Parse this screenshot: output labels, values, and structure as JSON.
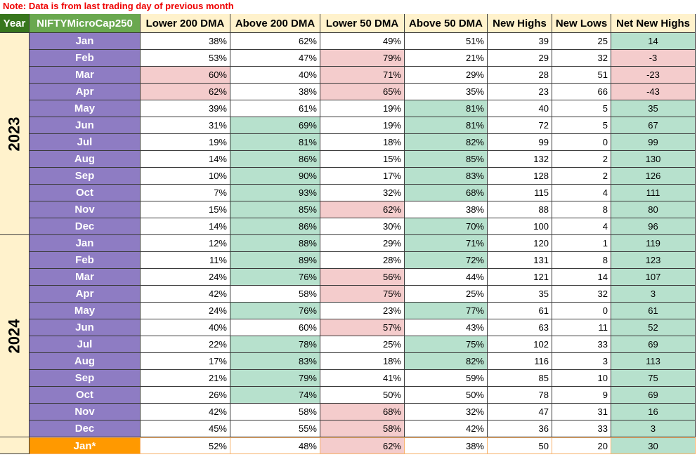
{
  "note": "Note: Data is from last trading day of previous month",
  "header": [
    "Year",
    "NIFTYMicroCap250",
    "Lower 200 DMA",
    "Above 200 DMA",
    "Lower 50 DMA",
    "Above 50 DMA",
    "New Highs",
    "New Lows",
    "Net New Highs"
  ],
  "month_fill": "#8e7cc3",
  "groups": [
    {
      "year": "2023",
      "rows": [
        {
          "month": "Jan",
          "cells": [
            "38%",
            "62%",
            "49%",
            "51%",
            "39",
            "25",
            "14"
          ],
          "fills": [
            null,
            null,
            null,
            null,
            null,
            null,
            "#b7e1cd"
          ]
        },
        {
          "month": "Feb",
          "cells": [
            "53%",
            "47%",
            "79%",
            "21%",
            "29",
            "32",
            "-3"
          ],
          "fills": [
            null,
            null,
            "#f4cccc",
            null,
            null,
            null,
            "#f4cccc"
          ]
        },
        {
          "month": "Mar",
          "cells": [
            "60%",
            "40%",
            "71%",
            "29%",
            "28",
            "51",
            "-23"
          ],
          "fills": [
            "#f4cccc",
            null,
            "#f4cccc",
            null,
            null,
            null,
            "#f4cccc"
          ]
        },
        {
          "month": "Apr",
          "cells": [
            "62%",
            "38%",
            "65%",
            "35%",
            "23",
            "66",
            "-43"
          ],
          "fills": [
            "#f4cccc",
            null,
            "#f4cccc",
            null,
            null,
            null,
            "#f4cccc"
          ]
        },
        {
          "month": "May",
          "cells": [
            "39%",
            "61%",
            "19%",
            "81%",
            "40",
            "5",
            "35"
          ],
          "fills": [
            null,
            null,
            null,
            "#b7e1cd",
            null,
            null,
            "#b7e1cd"
          ]
        },
        {
          "month": "Jun",
          "cells": [
            "31%",
            "69%",
            "19%",
            "81%",
            "72",
            "5",
            "67"
          ],
          "fills": [
            null,
            "#b7e1cd",
            null,
            "#b7e1cd",
            null,
            null,
            "#b7e1cd"
          ]
        },
        {
          "month": "Jul",
          "cells": [
            "19%",
            "81%",
            "18%",
            "82%",
            "99",
            "0",
            "99"
          ],
          "fills": [
            null,
            "#b7e1cd",
            null,
            "#b7e1cd",
            null,
            null,
            "#b7e1cd"
          ]
        },
        {
          "month": "Aug",
          "cells": [
            "14%",
            "86%",
            "15%",
            "85%",
            "132",
            "2",
            "130"
          ],
          "fills": [
            null,
            "#b7e1cd",
            null,
            "#b7e1cd",
            null,
            null,
            "#b7e1cd"
          ]
        },
        {
          "month": "Sep",
          "cells": [
            "10%",
            "90%",
            "17%",
            "83%",
            "128",
            "2",
            "126"
          ],
          "fills": [
            null,
            "#b7e1cd",
            null,
            "#b7e1cd",
            null,
            null,
            "#b7e1cd"
          ]
        },
        {
          "month": "Oct",
          "cells": [
            "7%",
            "93%",
            "32%",
            "68%",
            "115",
            "4",
            "111"
          ],
          "fills": [
            null,
            "#b7e1cd",
            null,
            "#b7e1cd",
            null,
            null,
            "#b7e1cd"
          ]
        },
        {
          "month": "Nov",
          "cells": [
            "15%",
            "85%",
            "62%",
            "38%",
            "88",
            "8",
            "80"
          ],
          "fills": [
            null,
            "#b7e1cd",
            "#f4cccc",
            null,
            null,
            null,
            "#b7e1cd"
          ]
        },
        {
          "month": "Dec",
          "cells": [
            "14%",
            "86%",
            "30%",
            "70%",
            "100",
            "4",
            "96"
          ],
          "fills": [
            null,
            "#b7e1cd",
            null,
            "#b7e1cd",
            null,
            null,
            "#b7e1cd"
          ]
        }
      ]
    },
    {
      "year": "2024",
      "rows": [
        {
          "month": "Jan",
          "cells": [
            "12%",
            "88%",
            "29%",
            "71%",
            "120",
            "1",
            "119"
          ],
          "fills": [
            null,
            "#b7e1cd",
            null,
            "#b7e1cd",
            null,
            null,
            "#b7e1cd"
          ]
        },
        {
          "month": "Feb",
          "cells": [
            "11%",
            "89%",
            "28%",
            "72%",
            "131",
            "8",
            "123"
          ],
          "fills": [
            null,
            "#b7e1cd",
            null,
            "#b7e1cd",
            null,
            null,
            "#b7e1cd"
          ]
        },
        {
          "month": "Mar",
          "cells": [
            "24%",
            "76%",
            "56%",
            "44%",
            "121",
            "14",
            "107"
          ],
          "fills": [
            null,
            "#b7e1cd",
            "#f4cccc",
            null,
            null,
            null,
            "#b7e1cd"
          ]
        },
        {
          "month": "Apr",
          "cells": [
            "42%",
            "58%",
            "75%",
            "25%",
            "35",
            "32",
            "3"
          ],
          "fills": [
            null,
            null,
            "#f4cccc",
            null,
            null,
            null,
            "#b7e1cd"
          ]
        },
        {
          "month": "May",
          "cells": [
            "24%",
            "76%",
            "23%",
            "77%",
            "61",
            "0",
            "61"
          ],
          "fills": [
            null,
            "#b7e1cd",
            null,
            "#b7e1cd",
            null,
            null,
            "#b7e1cd"
          ]
        },
        {
          "month": "Jun",
          "cells": [
            "40%",
            "60%",
            "57%",
            "43%",
            "63",
            "11",
            "52"
          ],
          "fills": [
            null,
            null,
            "#f4cccc",
            null,
            null,
            null,
            "#b7e1cd"
          ]
        },
        {
          "month": "Jul",
          "cells": [
            "22%",
            "78%",
            "25%",
            "75%",
            "102",
            "33",
            "69"
          ],
          "fills": [
            null,
            "#b7e1cd",
            null,
            "#b7e1cd",
            null,
            null,
            "#b7e1cd"
          ]
        },
        {
          "month": "Aug",
          "cells": [
            "17%",
            "83%",
            "18%",
            "82%",
            "116",
            "3",
            "113"
          ],
          "fills": [
            null,
            "#b7e1cd",
            null,
            "#b7e1cd",
            null,
            null,
            "#b7e1cd"
          ]
        },
        {
          "month": "Sep",
          "cells": [
            "21%",
            "79%",
            "41%",
            "59%",
            "85",
            "10",
            "75"
          ],
          "fills": [
            null,
            "#b7e1cd",
            null,
            null,
            null,
            null,
            "#b7e1cd"
          ]
        },
        {
          "month": "Oct",
          "cells": [
            "26%",
            "74%",
            "50%",
            "50%",
            "78",
            "9",
            "69"
          ],
          "fills": [
            null,
            "#b7e1cd",
            null,
            null,
            null,
            null,
            "#b7e1cd"
          ]
        },
        {
          "month": "Nov",
          "cells": [
            "42%",
            "58%",
            "68%",
            "32%",
            "47",
            "31",
            "16"
          ],
          "fills": [
            null,
            null,
            "#f4cccc",
            null,
            null,
            null,
            "#b7e1cd"
          ]
        },
        {
          "month": "Dec",
          "cells": [
            "45%",
            "55%",
            "58%",
            "42%",
            "36",
            "33",
            "3"
          ],
          "fills": [
            null,
            null,
            "#f4cccc",
            null,
            null,
            null,
            "#b7e1cd"
          ]
        }
      ]
    },
    {
      "rows": [
        {
          "month": "Jan*",
          "month_fill": "#ff9900",
          "border": "#f6b26b",
          "cells": [
            "52%",
            "48%",
            "62%",
            "38%",
            "50",
            "20",
            "30"
          ],
          "fills": [
            null,
            null,
            "#f4cccc",
            null,
            null,
            null,
            "#b7e1cd"
          ]
        }
      ]
    }
  ]
}
